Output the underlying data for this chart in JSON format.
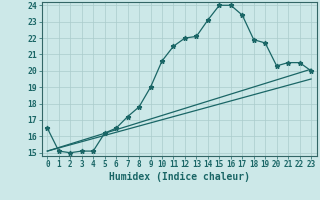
{
  "xlabel": "Humidex (Indice chaleur)",
  "bg_color": "#cce8e8",
  "grid_color": "#aacccc",
  "line_color": "#1a6666",
  "spine_color": "#336666",
  "xlim": [
    -0.5,
    23.5
  ],
  "ylim": [
    14.8,
    24.2
  ],
  "xticks": [
    0,
    1,
    2,
    3,
    4,
    5,
    6,
    7,
    8,
    9,
    10,
    11,
    12,
    13,
    14,
    15,
    16,
    17,
    18,
    19,
    20,
    21,
    22,
    23
  ],
  "yticks": [
    15,
    16,
    17,
    18,
    19,
    20,
    21,
    22,
    23,
    24
  ],
  "line1_x": [
    0,
    1,
    2,
    3,
    4,
    5,
    6,
    7,
    8,
    9,
    10,
    11,
    12,
    13,
    14,
    15,
    16,
    17,
    18,
    19,
    20,
    21,
    22,
    23
  ],
  "line1_y": [
    16.5,
    15.1,
    15.0,
    15.1,
    15.1,
    16.2,
    16.5,
    17.2,
    17.8,
    19.0,
    20.6,
    21.5,
    22.0,
    22.1,
    23.1,
    24.0,
    24.0,
    23.4,
    21.9,
    21.7,
    20.3,
    20.5,
    20.5,
    20.0
  ],
  "line2_x": [
    0,
    23
  ],
  "line2_y": [
    15.1,
    20.1
  ],
  "line3_x": [
    0,
    23
  ],
  "line3_y": [
    15.1,
    19.5
  ],
  "xlabel_fontsize": 7,
  "tick_fontsize": 5.5
}
